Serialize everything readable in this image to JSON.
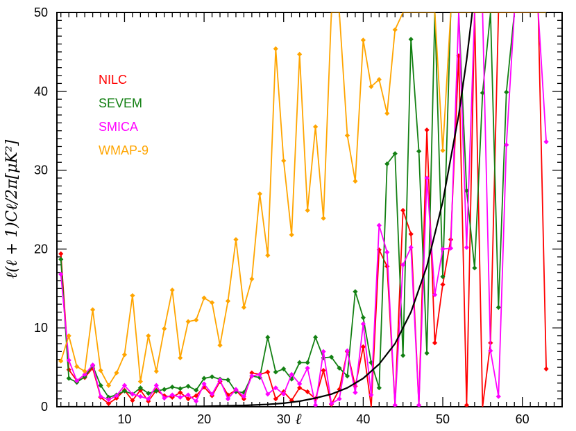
{
  "chart_data": {
    "type": "line",
    "xlabel": "ℓ",
    "ylabel": "ℓ(ℓ + 1)Cℓ/2π[μK²]",
    "xlim": [
      1.5,
      65
    ],
    "ylim": [
      0,
      50
    ],
    "x_ticks": [
      10,
      20,
      30,
      40,
      50,
      60
    ],
    "y_ticks": [
      0,
      10,
      20,
      30,
      40,
      50
    ],
    "grid": false,
    "legend_position": "top-left",
    "series": [
      {
        "name": "NILC",
        "color": "#ff0000",
        "points": [
          [
            2,
            19.4
          ],
          [
            3,
            4.7
          ],
          [
            4,
            3.3
          ],
          [
            5,
            3.7
          ],
          [
            6,
            4.9
          ],
          [
            7,
            1.2
          ],
          [
            8,
            0.4
          ],
          [
            9,
            1.1
          ],
          [
            10,
            2.1
          ],
          [
            11,
            0.8
          ],
          [
            12,
            2.1
          ],
          [
            13,
            0.7
          ],
          [
            14,
            2.1
          ],
          [
            15,
            1.4
          ],
          [
            16,
            1.2
          ],
          [
            17,
            1.8
          ],
          [
            18,
            1.0
          ],
          [
            19,
            1.4
          ],
          [
            20,
            2.5
          ],
          [
            21,
            1.4
          ],
          [
            22,
            3.2
          ],
          [
            23,
            1.5
          ],
          [
            24,
            2.1
          ],
          [
            25,
            1.0
          ],
          [
            26,
            4.3
          ],
          [
            27,
            4.1
          ],
          [
            28,
            4.4
          ],
          [
            29,
            1.0
          ],
          [
            30,
            1.9
          ],
          [
            31,
            0.8
          ],
          [
            32,
            2.4
          ],
          [
            33,
            1.9
          ],
          [
            34,
            1.0
          ],
          [
            35,
            4.6
          ],
          [
            36,
            0.3
          ],
          [
            37,
            2.2
          ],
          [
            38,
            7.0
          ],
          [
            39,
            2.6
          ],
          [
            40,
            7.6
          ],
          [
            41,
            0.0
          ],
          [
            42,
            19.9
          ],
          [
            43,
            17.8
          ],
          [
            44,
            0.2
          ],
          [
            45,
            24.9
          ],
          [
            46,
            21.9
          ],
          [
            47,
            0.2
          ],
          [
            48,
            35.1
          ],
          [
            49,
            8.1
          ],
          [
            50,
            15.5
          ],
          [
            51,
            21.2
          ],
          [
            52,
            44.5
          ],
          [
            53,
            0.2
          ],
          [
            54,
            50.0
          ],
          [
            55,
            0.0
          ],
          [
            56,
            8.1
          ],
          [
            57,
            50.0
          ],
          [
            58,
            50.0
          ],
          [
            59,
            50.0
          ],
          [
            60,
            50.0
          ],
          [
            61,
            50.0
          ],
          [
            62,
            50.0
          ],
          [
            63,
            4.8
          ]
        ]
      },
      {
        "name": "SEVEM",
        "color": "#138013",
        "points": [
          [
            2,
            18.7
          ],
          [
            3,
            3.6
          ],
          [
            4,
            3.1
          ],
          [
            5,
            3.8
          ],
          [
            6,
            5.2
          ],
          [
            7,
            2.7
          ],
          [
            8,
            1.2
          ],
          [
            9,
            1.5
          ],
          [
            10,
            2.0
          ],
          [
            11,
            1.6
          ],
          [
            12,
            2.4
          ],
          [
            13,
            1.7
          ],
          [
            14,
            2.0
          ],
          [
            15,
            2.2
          ],
          [
            16,
            2.5
          ],
          [
            17,
            2.3
          ],
          [
            18,
            2.6
          ],
          [
            19,
            2.1
          ],
          [
            20,
            3.6
          ],
          [
            21,
            3.8
          ],
          [
            22,
            3.5
          ],
          [
            23,
            3.4
          ],
          [
            24,
            1.9
          ],
          [
            25,
            1.8
          ],
          [
            26,
            3.9
          ],
          [
            27,
            3.7
          ],
          [
            28,
            8.8
          ],
          [
            29,
            4.4
          ],
          [
            30,
            4.8
          ],
          [
            31,
            3.5
          ],
          [
            32,
            5.6
          ],
          [
            33,
            5.6
          ],
          [
            34,
            8.8
          ],
          [
            35,
            6.2
          ],
          [
            36,
            6.3
          ],
          [
            37,
            4.9
          ],
          [
            38,
            3.9
          ],
          [
            39,
            14.6
          ],
          [
            40,
            11.3
          ],
          [
            41,
            5.6
          ],
          [
            42,
            2.4
          ],
          [
            43,
            30.8
          ],
          [
            44,
            32.1
          ],
          [
            45,
            6.5
          ],
          [
            46,
            46.6
          ],
          [
            47,
            32.4
          ],
          [
            48,
            6.8
          ],
          [
            49,
            50.0
          ],
          [
            50,
            16.5
          ],
          [
            51,
            50.0
          ],
          [
            52,
            50.0
          ],
          [
            53,
            27.4
          ],
          [
            54,
            17.6
          ],
          [
            55,
            39.8
          ],
          [
            56,
            50.0
          ],
          [
            57,
            12.6
          ],
          [
            58,
            39.9
          ],
          [
            59,
            50.0
          ],
          [
            60,
            50.0
          ],
          [
            61,
            50.0
          ],
          [
            62,
            50.0
          ],
          [
            63,
            50.0
          ]
        ]
      },
      {
        "name": "SMICA",
        "color": "#ff00ff",
        "points": [
          [
            2,
            16.8
          ],
          [
            3,
            5.9
          ],
          [
            4,
            3.3
          ],
          [
            5,
            4.1
          ],
          [
            6,
            5.3
          ],
          [
            7,
            1.3
          ],
          [
            8,
            0.9
          ],
          [
            9,
            1.4
          ],
          [
            10,
            2.7
          ],
          [
            11,
            1.6
          ],
          [
            12,
            1.3
          ],
          [
            13,
            1.0
          ],
          [
            14,
            2.7
          ],
          [
            15,
            1.1
          ],
          [
            16,
            1.5
          ],
          [
            17,
            1.2
          ],
          [
            18,
            1.5
          ],
          [
            19,
            0.7
          ],
          [
            20,
            2.9
          ],
          [
            21,
            1.6
          ],
          [
            22,
            3.4
          ],
          [
            23,
            1.0
          ],
          [
            24,
            2.2
          ],
          [
            25,
            1.3
          ],
          [
            26,
            3.9
          ],
          [
            27,
            4.1
          ],
          [
            28,
            1.6
          ],
          [
            29,
            2.4
          ],
          [
            30,
            1.6
          ],
          [
            31,
            4.1
          ],
          [
            32,
            2.9
          ],
          [
            33,
            4.9
          ],
          [
            34,
            0.2
          ],
          [
            35,
            7.0
          ],
          [
            36,
            0.4
          ],
          [
            37,
            1.0
          ],
          [
            38,
            7.1
          ],
          [
            39,
            1.8
          ],
          [
            40,
            10.5
          ],
          [
            41,
            1.5
          ],
          [
            42,
            23.0
          ],
          [
            43,
            19.6
          ],
          [
            44,
            0.2
          ],
          [
            45,
            18.0
          ],
          [
            46,
            20.2
          ],
          [
            47,
            0.2
          ],
          [
            48,
            29.0
          ],
          [
            49,
            14.2
          ],
          [
            50,
            20.0
          ],
          [
            51,
            20.1
          ],
          [
            52,
            50.0
          ],
          [
            53,
            20.2
          ],
          [
            54,
            50.0
          ],
          [
            55,
            50.0
          ],
          [
            56,
            7.1
          ],
          [
            57,
            1.3
          ],
          [
            58,
            33.2
          ],
          [
            59,
            50.0
          ],
          [
            60,
            50.0
          ],
          [
            61,
            50.0
          ],
          [
            62,
            50.0
          ],
          [
            63,
            33.6
          ]
        ]
      },
      {
        "name": "WMAP-9",
        "color": "#ffa500",
        "points": [
          [
            2,
            5.8
          ],
          [
            3,
            9.0
          ],
          [
            4,
            5.1
          ],
          [
            5,
            4.5
          ],
          [
            6,
            12.3
          ],
          [
            7,
            4.6
          ],
          [
            8,
            2.7
          ],
          [
            9,
            4.3
          ],
          [
            10,
            6.6
          ],
          [
            11,
            14.1
          ],
          [
            12,
            3.2
          ],
          [
            13,
            9.0
          ],
          [
            14,
            4.5
          ],
          [
            15,
            9.9
          ],
          [
            16,
            14.8
          ],
          [
            17,
            6.2
          ],
          [
            18,
            10.8
          ],
          [
            19,
            11.0
          ],
          [
            20,
            13.8
          ],
          [
            21,
            13.2
          ],
          [
            22,
            7.8
          ],
          [
            23,
            13.4
          ],
          [
            24,
            21.2
          ],
          [
            25,
            12.6
          ],
          [
            26,
            16.2
          ],
          [
            27,
            27.0
          ],
          [
            28,
            19.2
          ],
          [
            29,
            45.4
          ],
          [
            30,
            31.2
          ],
          [
            31,
            21.8
          ],
          [
            32,
            44.7
          ],
          [
            33,
            24.9
          ],
          [
            34,
            35.5
          ],
          [
            35,
            23.9
          ],
          [
            36,
            50.0
          ],
          [
            37,
            50.0
          ],
          [
            38,
            34.4
          ],
          [
            39,
            28.6
          ],
          [
            40,
            46.5
          ],
          [
            41,
            40.6
          ],
          [
            42,
            41.5
          ],
          [
            43,
            37.2
          ],
          [
            44,
            47.8
          ],
          [
            45,
            50.0
          ],
          [
            46,
            50.0
          ],
          [
            47,
            50.0
          ],
          [
            48,
            50.0
          ],
          [
            49,
            50.0
          ],
          [
            50,
            32.5
          ],
          [
            51,
            50.0
          ],
          [
            52,
            50.0
          ],
          [
            53,
            50.0
          ],
          [
            54,
            50.0
          ],
          [
            55,
            50.0
          ],
          [
            56,
            50.0
          ],
          [
            57,
            50.0
          ],
          [
            58,
            50.0
          ],
          [
            59,
            50.0
          ],
          [
            60,
            50.0
          ],
          [
            61,
            50.0
          ],
          [
            62,
            50.0
          ],
          [
            63,
            50.0
          ]
        ]
      },
      {
        "name": "",
        "color": "#000000",
        "markers": false,
        "points": [
          [
            2,
            0
          ],
          [
            10,
            0.003
          ],
          [
            15,
            0.02
          ],
          [
            20,
            0.06
          ],
          [
            25,
            0.17
          ],
          [
            28,
            0.3
          ],
          [
            30,
            0.45
          ],
          [
            32,
            0.7
          ],
          [
            34,
            1.1
          ],
          [
            36,
            1.6
          ],
          [
            38,
            2.4
          ],
          [
            40,
            3.6
          ],
          [
            42,
            5.4
          ],
          [
            44,
            8.0
          ],
          [
            46,
            12.0
          ],
          [
            48,
            17.8
          ],
          [
            50,
            26.0
          ],
          [
            52,
            37.0
          ],
          [
            53,
            44.0
          ],
          [
            53.7,
            50.0
          ]
        ]
      }
    ]
  }
}
